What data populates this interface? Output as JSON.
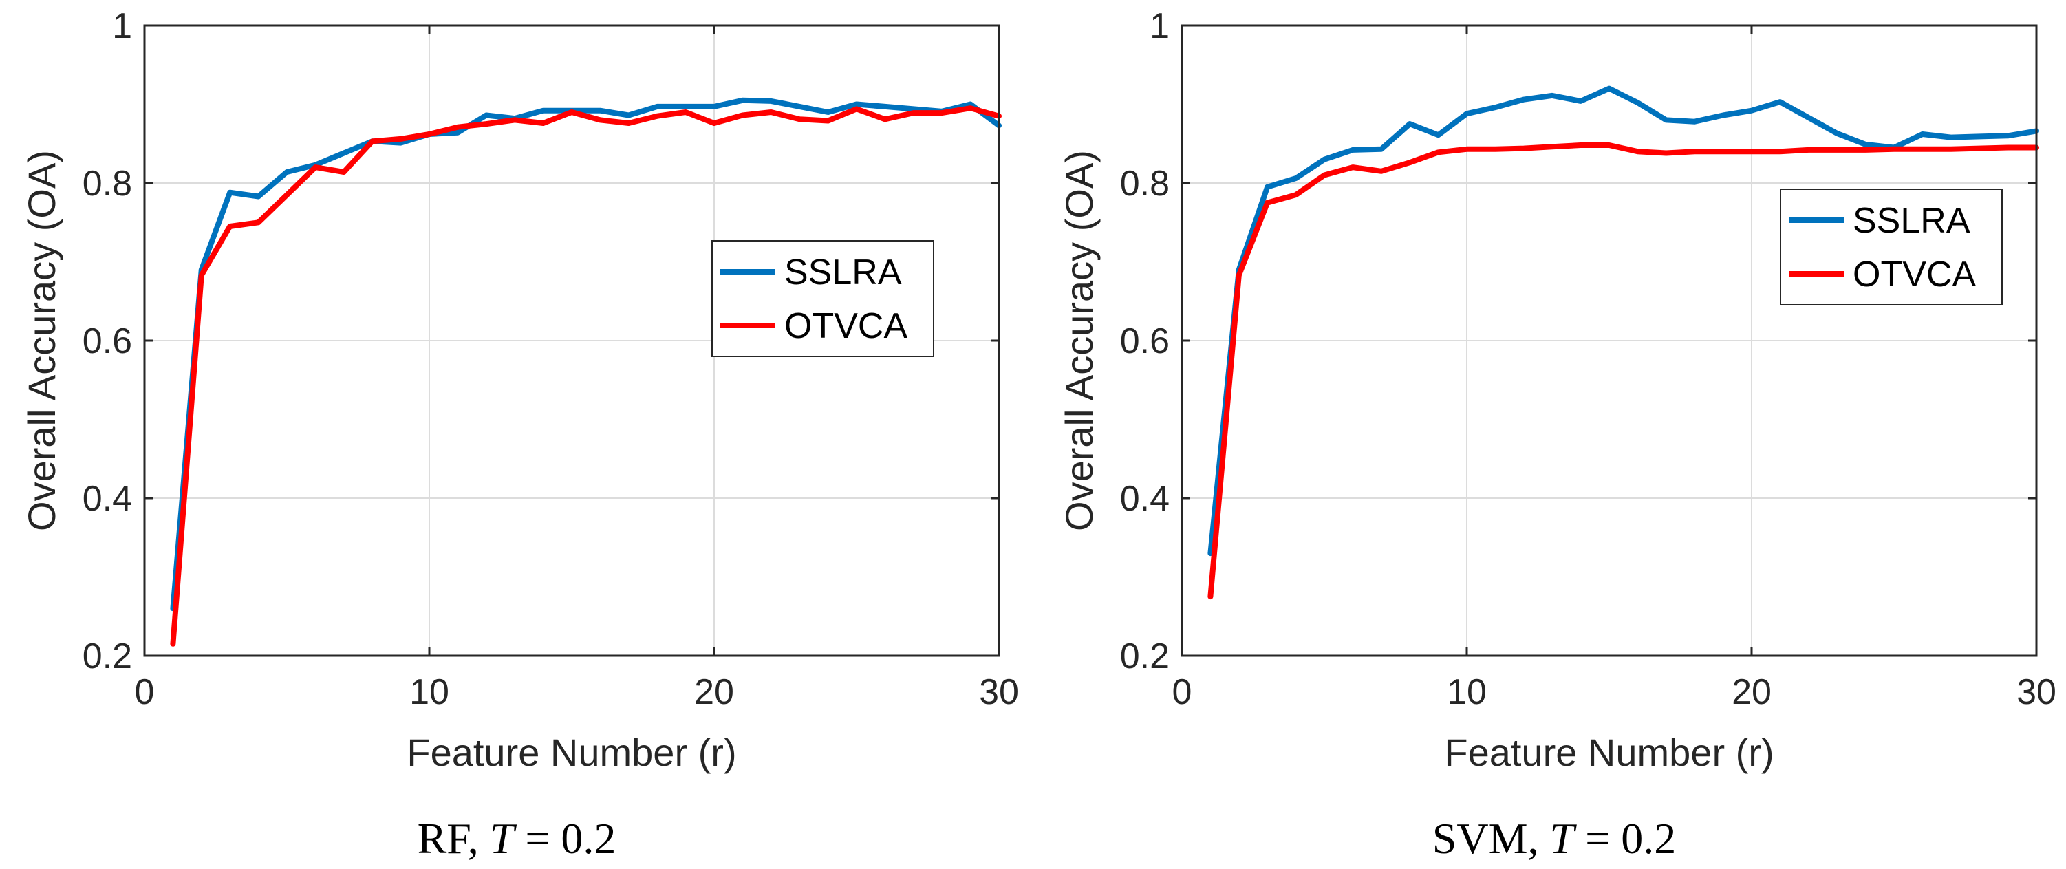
{
  "colors": {
    "sslra": "#0072BD",
    "otvca": "#FF0000"
  },
  "chart_data": [
    {
      "type": "line",
      "xlabel": "Feature Number (r)",
      "ylabel": "Overall Accuracy (OA)",
      "xlim": [
        0,
        30
      ],
      "ylim": [
        0.2,
        1
      ],
      "xticks": [
        0,
        10,
        20,
        30
      ],
      "yticks": [
        0.2,
        0.4,
        0.6,
        0.8,
        1
      ],
      "ytick_labels": [
        "0.2",
        "0.4",
        "0.6",
        "0.8",
        "1"
      ],
      "grid": true,
      "legend_position": "right-middle",
      "caption": {
        "prefix": "RF, ",
        "var": "T",
        "rest": " = 0.2"
      },
      "x": [
        1,
        2,
        3,
        4,
        5,
        6,
        7,
        8,
        9,
        10,
        11,
        12,
        13,
        14,
        15,
        16,
        17,
        18,
        19,
        20,
        21,
        22,
        23,
        24,
        25,
        26,
        27,
        28,
        29,
        30
      ],
      "series": [
        {
          "name": "SSLRA",
          "color": "#0072BD",
          "values": [
            0.26,
            0.69,
            0.788,
            0.783,
            0.814,
            0.823,
            0.838,
            0.853,
            0.851,
            0.862,
            0.864,
            0.886,
            0.882,
            0.892,
            0.892,
            0.892,
            0.886,
            0.897,
            0.897,
            0.897,
            0.905,
            0.904,
            0.897,
            0.89,
            0.9,
            0.897,
            0.894,
            0.891,
            0.9,
            0.873
          ]
        },
        {
          "name": "OTVCA",
          "color": "#FF0000",
          "values": [
            0.215,
            0.683,
            0.745,
            0.75,
            0.785,
            0.82,
            0.814,
            0.853,
            0.856,
            0.862,
            0.871,
            0.875,
            0.88,
            0.876,
            0.89,
            0.88,
            0.876,
            0.885,
            0.89,
            0.876,
            0.886,
            0.89,
            0.881,
            0.879,
            0.894,
            0.881,
            0.889,
            0.889,
            0.895,
            0.885
          ]
        }
      ]
    },
    {
      "type": "line",
      "xlabel": "Feature Number (r)",
      "ylabel": "Overall Accuracy (OA)",
      "xlim": [
        0,
        30
      ],
      "ylim": [
        0.2,
        1
      ],
      "xticks": [
        0,
        10,
        20,
        30
      ],
      "yticks": [
        0.2,
        0.4,
        0.6,
        0.8,
        1
      ],
      "ytick_labels": [
        "0.2",
        "0.4",
        "0.6",
        "0.8",
        "1"
      ],
      "grid": true,
      "legend_position": "top-right",
      "caption": {
        "prefix": "SVM, ",
        "var": "T",
        "rest": " = 0.2"
      },
      "x": [
        1,
        2,
        3,
        4,
        5,
        6,
        7,
        8,
        9,
        10,
        11,
        12,
        13,
        14,
        15,
        16,
        17,
        18,
        19,
        20,
        21,
        22,
        23,
        24,
        25,
        26,
        27,
        28,
        29,
        30
      ],
      "series": [
        {
          "name": "SSLRA",
          "color": "#0072BD",
          "values": [
            0.33,
            0.69,
            0.795,
            0.806,
            0.83,
            0.842,
            0.843,
            0.875,
            0.861,
            0.888,
            0.896,
            0.906,
            0.911,
            0.904,
            0.92,
            0.902,
            0.88,
            0.878,
            0.886,
            0.892,
            0.903,
            0.883,
            0.863,
            0.849,
            0.845,
            0.862,
            0.858,
            0.859,
            0.86,
            0.866
          ]
        },
        {
          "name": "OTVCA",
          "color": "#FF0000",
          "values": [
            0.275,
            0.683,
            0.775,
            0.785,
            0.81,
            0.82,
            0.815,
            0.826,
            0.839,
            0.843,
            0.843,
            0.844,
            0.846,
            0.848,
            0.848,
            0.84,
            0.838,
            0.84,
            0.84,
            0.84,
            0.84,
            0.842,
            0.842,
            0.842,
            0.843,
            0.843,
            0.843,
            0.844,
            0.845,
            0.845
          ]
        }
      ]
    }
  ]
}
